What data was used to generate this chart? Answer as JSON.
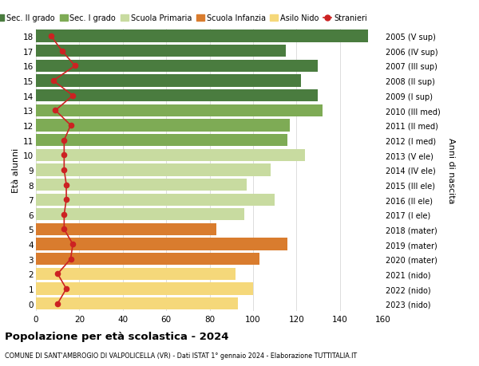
{
  "ages": [
    18,
    17,
    16,
    15,
    14,
    13,
    12,
    11,
    10,
    9,
    8,
    7,
    6,
    5,
    4,
    3,
    2,
    1,
    0
  ],
  "labels_right": [
    "2005 (V sup)",
    "2006 (IV sup)",
    "2007 (III sup)",
    "2008 (II sup)",
    "2009 (I sup)",
    "2010 (III med)",
    "2011 (II med)",
    "2012 (I med)",
    "2013 (V ele)",
    "2014 (IV ele)",
    "2015 (III ele)",
    "2016 (II ele)",
    "2017 (I ele)",
    "2018 (mater)",
    "2019 (mater)",
    "2020 (mater)",
    "2021 (nido)",
    "2022 (nido)",
    "2023 (nido)"
  ],
  "bar_values": [
    153,
    115,
    130,
    122,
    130,
    132,
    117,
    116,
    124,
    108,
    97,
    110,
    96,
    83,
    116,
    103,
    92,
    100,
    93
  ],
  "stranieri": [
    7,
    12,
    18,
    8,
    17,
    9,
    16,
    13,
    13,
    13,
    14,
    14,
    13,
    13,
    17,
    16,
    10,
    14,
    10
  ],
  "bar_colors": [
    "#4a7c3f",
    "#4a7c3f",
    "#4a7c3f",
    "#4a7c3f",
    "#4a7c3f",
    "#7eab55",
    "#7eab55",
    "#7eab55",
    "#c8dba0",
    "#c8dba0",
    "#c8dba0",
    "#c8dba0",
    "#c8dba0",
    "#d97c2e",
    "#d97c2e",
    "#d97c2e",
    "#f5d87a",
    "#f5d87a",
    "#f5d87a"
  ],
  "legend_labels": [
    "Sec. II grado",
    "Sec. I grado",
    "Scuola Primaria",
    "Scuola Infanzia",
    "Asilo Nido",
    "Stranieri"
  ],
  "legend_colors": [
    "#4a7c3f",
    "#7eab55",
    "#c8dba0",
    "#d97c2e",
    "#f5d87a",
    "#cc2222"
  ],
  "ylabel_left": "Età alunni",
  "ylabel_right": "Anni di nascita",
  "xlim": [
    0,
    160
  ],
  "xticks": [
    0,
    20,
    40,
    60,
    80,
    100,
    120,
    140,
    160
  ],
  "title": "Popolazione per età scolastica - 2024",
  "subtitle": "COMUNE DI SANT'AMBROGIO DI VALPOLICELLA (VR) - Dati ISTAT 1° gennaio 2024 - Elaborazione TUTTITALIA.IT",
  "background_color": "#ffffff",
  "grid_color": "#dddddd",
  "stranieri_color": "#cc2222",
  "bar_height": 0.82
}
